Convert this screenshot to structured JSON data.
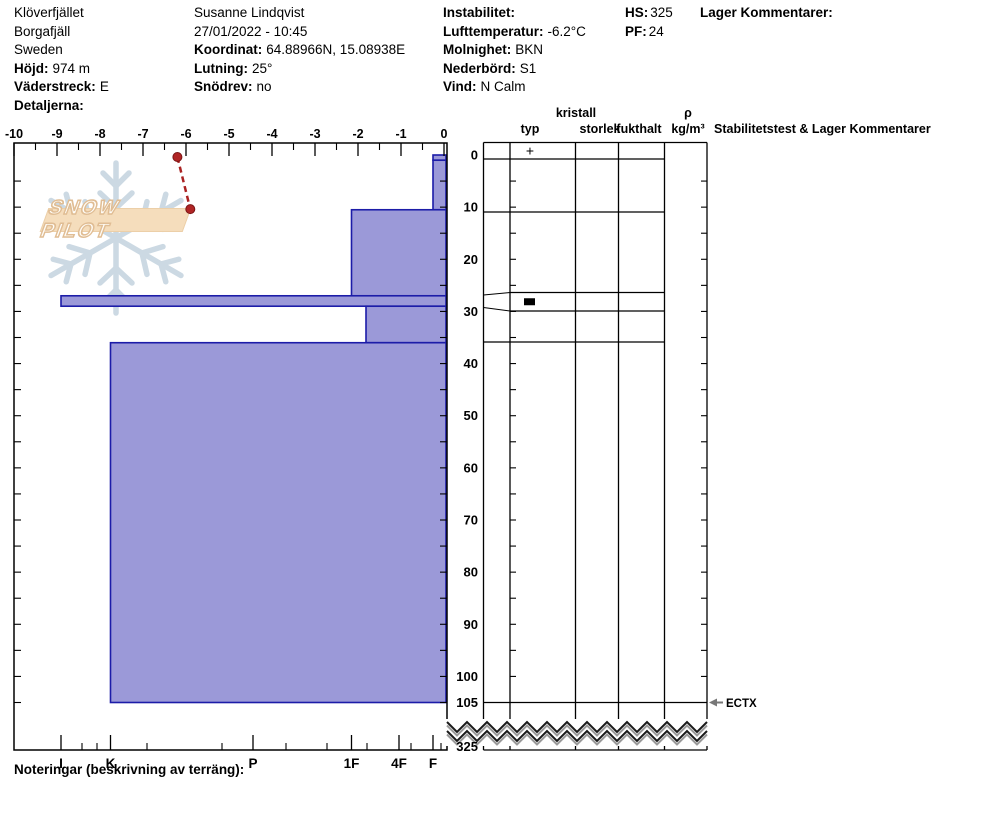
{
  "header": {
    "location_name": "Klöverfjället",
    "location_region": "Borgafjäll",
    "location_country": "Sweden",
    "hojd": {
      "label": "Höjd:",
      "value": "974 m"
    },
    "vaderstreck": {
      "label": "Väderstreck:",
      "value": "E"
    },
    "detaljerna": {
      "label": "Detaljerna:",
      "value": ""
    },
    "observer": "Susanne Lindqvist",
    "datetime": "27/01/2022 - 10:45",
    "koordinat": {
      "label": "Koordinat:",
      "value": "64.88966N, 15.08938E"
    },
    "lutning": {
      "label": "Lutning:",
      "value": "25°"
    },
    "snodrev": {
      "label": "Snödrev:",
      "value": "no"
    },
    "instabilitet": {
      "label": "Instabilitet:",
      "value": ""
    },
    "lufttemperatur": {
      "label": "Lufttemperatur:",
      "value": "-6.2°C"
    },
    "molnighet": {
      "label": "Molnighet:",
      "value": "BKN"
    },
    "nederbord": {
      "label": "Nederbörd:",
      "value": "S1"
    },
    "vind": {
      "label": "Vind:",
      "value": "N Calm"
    },
    "hs": {
      "label": "HS:",
      "value": "325"
    },
    "pf": {
      "label": "PF:",
      "value": "24"
    },
    "lager_kommentarer": {
      "label": "Lager Kommentarer:",
      "value": ""
    }
  },
  "logo": {
    "text": "SNOW PILOT"
  },
  "table_headers": {
    "kristall": "kristall",
    "typ": "typ",
    "storlek": "storlek",
    "fukthalt": "fukthalt",
    "rho": "ρ",
    "rho_units": "kg/m³",
    "stab": "Stabilitetstest & Lager Kommentarer"
  },
  "footer": {
    "noteringar": "Noteringar (beskrivning av terräng):"
  },
  "chart_data": {
    "type": "snow-profile",
    "temp_axis": {
      "unit": "°C",
      "ticks": [
        -10,
        -9,
        -8,
        -7,
        -6,
        -5,
        -4,
        -3,
        -2,
        -1,
        0
      ],
      "range": [
        -10,
        0
      ]
    },
    "depth_axis": {
      "unit": "cm",
      "tick_labels": [
        0,
        10,
        20,
        30,
        40,
        50,
        60,
        70,
        80,
        90,
        100,
        105
      ],
      "pit_depth_cm": 105,
      "total_snow_height_label": "325"
    },
    "hardness_axis": {
      "labels": [
        "I",
        "K",
        "P",
        "1F",
        "4F",
        "F"
      ]
    },
    "layers": [
      {
        "top_cm": 0,
        "bottom_cm": 1,
        "hardness": "F",
        "crystal_symbol": "+"
      },
      {
        "top_cm": 1,
        "bottom_cm": 10.5,
        "hardness": "F",
        "crystal_symbol": ""
      },
      {
        "top_cm": 10.5,
        "bottom_cm": 27,
        "hardness": "1F",
        "crystal_symbol": ""
      },
      {
        "top_cm": 27,
        "bottom_cm": 29,
        "hardness": "I",
        "crystal_symbol": "■"
      },
      {
        "top_cm": 29,
        "bottom_cm": 36,
        "hardness": "1F-",
        "crystal_symbol": ""
      },
      {
        "top_cm": 36,
        "bottom_cm": 105,
        "hardness": "K",
        "crystal_symbol": ""
      }
    ],
    "temperature_profile": [
      {
        "depth_cm": 0,
        "temp_c": -6.2
      },
      {
        "depth_cm": 10,
        "temp_c": -5.9
      }
    ],
    "stability_tests": [
      {
        "label": "ECTX",
        "depth_cm": 105
      }
    ],
    "colors": {
      "layer_fill": "#9b99d8",
      "layer_border": "#1c1ca8",
      "temp_line": "#aa2222",
      "logo_flake": "#ccd9e3",
      "logo_banner": "#f5ddbc"
    }
  }
}
